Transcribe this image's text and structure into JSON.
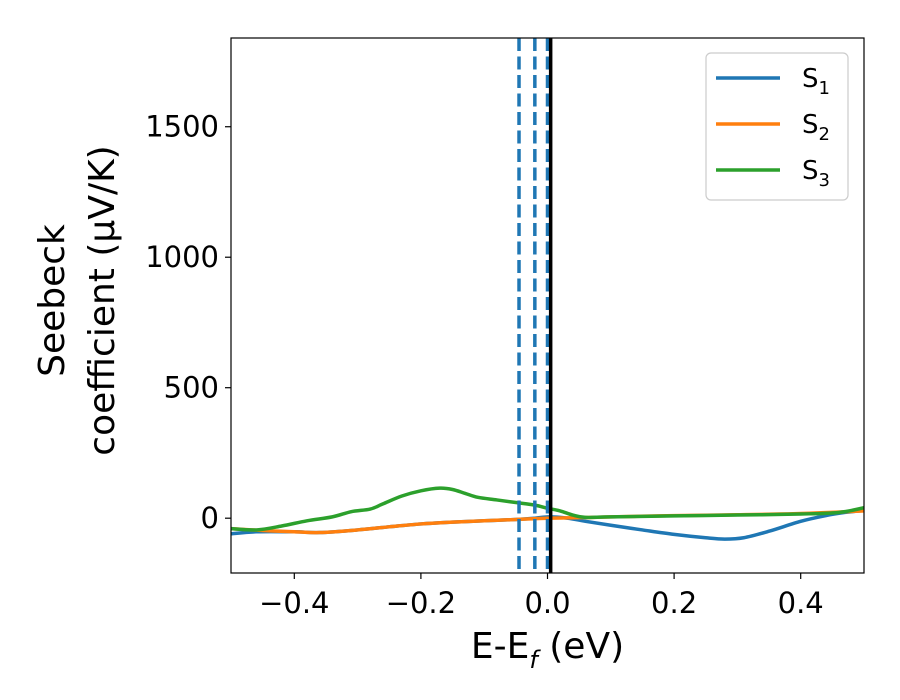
{
  "chart_data": {
    "type": "line",
    "xlabel": {
      "main": "E-E",
      "sub": "f",
      "unit": " (eV)"
    },
    "ylabel": {
      "line1": "Seebeck",
      "line2": "coefficient  (μV/K)"
    },
    "xlim": [
      -0.5,
      0.5
    ],
    "ylim": [
      -210,
      1840
    ],
    "xticks": [
      -0.4,
      -0.2,
      0.0,
      0.2,
      0.4
    ],
    "xtick_labels": [
      "−0.4",
      "−0.2",
      "0.0",
      "0.2",
      "0.4"
    ],
    "yticks": [
      0,
      500,
      1000,
      1500
    ],
    "ytick_labels": [
      "0",
      "500",
      "1000",
      "1500"
    ],
    "grid": false,
    "legend_position": "top-right",
    "series": [
      {
        "name": "S",
        "sub": "1",
        "color": "#1f77b4",
        "points": [
          [
            -0.5,
            -60
          ],
          [
            -0.46,
            -52
          ],
          [
            -0.4,
            -52
          ],
          [
            -0.36,
            -55
          ],
          [
            -0.3,
            -45
          ],
          [
            -0.25,
            -33
          ],
          [
            -0.2,
            -22
          ],
          [
            -0.15,
            -15
          ],
          [
            -0.1,
            -10
          ],
          [
            -0.05,
            -5
          ],
          [
            -0.02,
            0
          ],
          [
            0.0,
            5
          ],
          [
            0.02,
            3
          ],
          [
            0.04,
            -3
          ],
          [
            0.06,
            -12
          ],
          [
            0.1,
            -27
          ],
          [
            0.15,
            -45
          ],
          [
            0.2,
            -62
          ],
          [
            0.25,
            -75
          ],
          [
            0.28,
            -80
          ],
          [
            0.31,
            -75
          ],
          [
            0.35,
            -50
          ],
          [
            0.4,
            -12
          ],
          [
            0.44,
            10
          ],
          [
            0.47,
            22
          ],
          [
            0.5,
            30
          ]
        ]
      },
      {
        "name": "S",
        "sub": "2",
        "color": "#ff7f0e",
        "points": [
          [
            -0.5,
            -40
          ],
          [
            -0.45,
            -47
          ],
          [
            -0.4,
            -52
          ],
          [
            -0.36,
            -55
          ],
          [
            -0.3,
            -45
          ],
          [
            -0.25,
            -33
          ],
          [
            -0.2,
            -22
          ],
          [
            -0.15,
            -15
          ],
          [
            -0.1,
            -10
          ],
          [
            -0.05,
            -5
          ],
          [
            0.0,
            0
          ],
          [
            0.05,
            2
          ],
          [
            0.1,
            5
          ],
          [
            0.2,
            10
          ],
          [
            0.3,
            13
          ],
          [
            0.4,
            18
          ],
          [
            0.5,
            28
          ]
        ]
      },
      {
        "name": "S",
        "sub": "3",
        "color": "#2ca02c",
        "points": [
          [
            -0.5,
            -40
          ],
          [
            -0.46,
            -45
          ],
          [
            -0.42,
            -30
          ],
          [
            -0.38,
            -10
          ],
          [
            -0.34,
            5
          ],
          [
            -0.31,
            25
          ],
          [
            -0.28,
            35
          ],
          [
            -0.26,
            55
          ],
          [
            -0.23,
            85
          ],
          [
            -0.2,
            105
          ],
          [
            -0.17,
            115
          ],
          [
            -0.15,
            110
          ],
          [
            -0.13,
            95
          ],
          [
            -0.11,
            80
          ],
          [
            -0.08,
            70
          ],
          [
            -0.05,
            60
          ],
          [
            -0.02,
            50
          ],
          [
            0.0,
            38
          ],
          [
            0.02,
            28
          ],
          [
            0.04,
            12
          ],
          [
            0.06,
            3
          ],
          [
            0.1,
            5
          ],
          [
            0.2,
            9
          ],
          [
            0.3,
            12
          ],
          [
            0.4,
            16
          ],
          [
            0.46,
            22
          ],
          [
            0.5,
            40
          ]
        ]
      }
    ],
    "vlines": [
      {
        "x": -0.045,
        "style": "dashed",
        "color": "#1f77b4"
      },
      {
        "x": -0.02,
        "style": "dashed",
        "color": "#1f77b4"
      },
      {
        "x": 0.0,
        "style": "dashed",
        "color": "#1f77b4"
      },
      {
        "x": 0.005,
        "style": "solid",
        "color": "#000000"
      }
    ]
  }
}
